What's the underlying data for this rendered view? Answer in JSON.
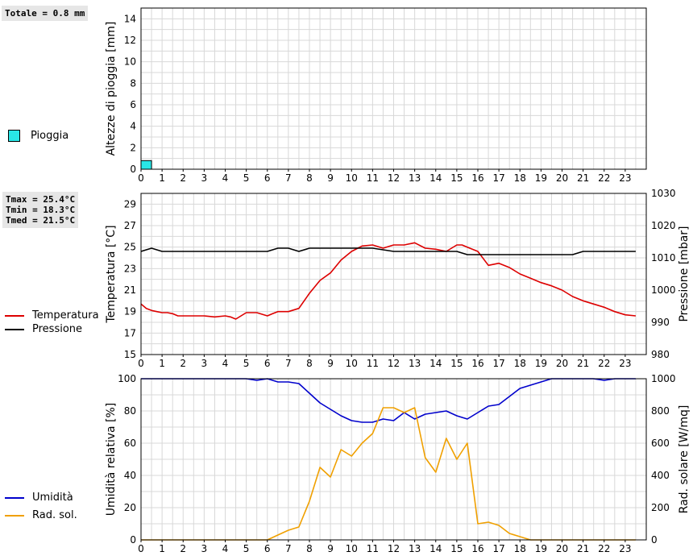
{
  "rain_panel": {
    "total_label": "Totale = 0.8 mm",
    "legend": [
      {
        "label": "Pioggia",
        "color": "#29e6e6"
      }
    ]
  },
  "temp_panel": {
    "stats": [
      "Tmax = 25.4°C",
      "Tmin = 18.3°C",
      "Tmed = 21.5°C"
    ],
    "legend": [
      {
        "label": "Temperatura",
        "color": "#dd0000"
      },
      {
        "label": "Pressione",
        "color": "#000000"
      }
    ]
  },
  "humidity_panel": {
    "legend": [
      {
        "label": "Umidità",
        "color": "#0000cc"
      },
      {
        "label": "Rad. sol.",
        "color": "#f0a000"
      }
    ]
  },
  "chart_data": [
    {
      "type": "bar",
      "ylabel": "Altezze di pioggia [mm]",
      "ylim": [
        0,
        15
      ],
      "yticks": [
        0,
        2,
        4,
        6,
        8,
        10,
        12,
        14
      ],
      "xlim": [
        0,
        24
      ],
      "xticks": [
        0,
        1,
        2,
        3,
        4,
        5,
        6,
        7,
        8,
        9,
        10,
        11,
        12,
        13,
        14,
        15,
        16,
        17,
        18,
        19,
        20,
        21,
        22,
        23
      ],
      "grid": true,
      "series": [
        {
          "name": "Pioggia",
          "color": "#29e6e6",
          "bars": [
            {
              "x0": 0,
              "x1": 0.5,
              "value": 0.8
            }
          ]
        }
      ]
    },
    {
      "type": "line",
      "ylabel": "Temperatura [°C]",
      "ylim": [
        15,
        30
      ],
      "yticks": [
        15,
        17,
        19,
        21,
        23,
        25,
        27,
        29
      ],
      "ylabel_right": "Pressione [mbar]",
      "ylim_right": [
        980,
        1030
      ],
      "yticks_right": [
        980,
        990,
        1000,
        1010,
        1020,
        1030
      ],
      "xlim": [
        0,
        24
      ],
      "xticks": [
        0,
        1,
        2,
        3,
        4,
        5,
        6,
        7,
        8,
        9,
        10,
        11,
        12,
        13,
        14,
        15,
        16,
        17,
        18,
        19,
        20,
        21,
        22,
        23
      ],
      "grid": true,
      "series": [
        {
          "name": "Temperatura",
          "color": "#dd0000",
          "axis": "left",
          "x": [
            0,
            0.25,
            0.5,
            0.75,
            1,
            1.25,
            1.5,
            1.75,
            2,
            2.5,
            3,
            3.5,
            4,
            4.25,
            4.5,
            4.75,
            5,
            5.5,
            6,
            6.25,
            6.5,
            7,
            7.5,
            8,
            8.5,
            9,
            9.5,
            10,
            10.5,
            11,
            11.5,
            12,
            12.5,
            13,
            13.5,
            14,
            14.5,
            15,
            15.25,
            15.5,
            16,
            16.5,
            17,
            17.5,
            18,
            18.5,
            19,
            19.5,
            20,
            20.5,
            21,
            21.5,
            22,
            22.5,
            23,
            23.5
          ],
          "y": [
            19.7,
            19.3,
            19.1,
            19.0,
            18.9,
            18.9,
            18.8,
            18.6,
            18.6,
            18.6,
            18.6,
            18.5,
            18.6,
            18.5,
            18.3,
            18.6,
            18.9,
            18.9,
            18.6,
            18.8,
            19.0,
            19.0,
            19.3,
            20.7,
            21.9,
            22.6,
            23.8,
            24.6,
            25.1,
            25.2,
            24.9,
            25.2,
            25.2,
            25.4,
            24.9,
            24.8,
            24.6,
            25.2,
            25.2,
            25.0,
            24.6,
            23.3,
            23.5,
            23.1,
            22.5,
            22.1,
            21.7,
            21.4,
            21.0,
            20.4,
            20.0,
            19.7,
            19.4,
            19.0,
            18.7,
            18.6
          ]
        },
        {
          "name": "Pressione",
          "color": "#000000",
          "axis": "right",
          "x": [
            0,
            0.5,
            1,
            2,
            3,
            4,
            5,
            6,
            6.5,
            7,
            7.5,
            8,
            9,
            10,
            11,
            12,
            13,
            14,
            15,
            15.5,
            16,
            17,
            18,
            19,
            20,
            20.5,
            21,
            22,
            23,
            23.5
          ],
          "y": [
            1012,
            1013,
            1012,
            1012,
            1012,
            1012,
            1012,
            1012,
            1013,
            1013,
            1012,
            1013,
            1013,
            1013,
            1013,
            1012,
            1012,
            1012,
            1012,
            1011,
            1011,
            1011,
            1011,
            1011,
            1011,
            1011,
            1012,
            1012,
            1012,
            1012
          ]
        }
      ]
    },
    {
      "type": "line",
      "ylabel": "Umidità relativa [%]",
      "ylim": [
        0,
        100
      ],
      "yticks": [
        0,
        20,
        40,
        60,
        80,
        100
      ],
      "ylabel_right": "Rad. solare [W/mq]",
      "ylim_right": [
        0,
        1000
      ],
      "yticks_right": [
        0,
        200,
        400,
        600,
        800,
        1000
      ],
      "xlim": [
        0,
        24
      ],
      "xticks": [
        0,
        1,
        2,
        3,
        4,
        5,
        6,
        7,
        8,
        9,
        10,
        11,
        12,
        13,
        14,
        15,
        16,
        17,
        18,
        19,
        20,
        21,
        22,
        23
      ],
      "grid": true,
      "series": [
        {
          "name": "Umidità",
          "color": "#0000cc",
          "axis": "left",
          "x": [
            0,
            1,
            2,
            3,
            4,
            5,
            5.5,
            6,
            6.5,
            7,
            7.5,
            8,
            8.5,
            9,
            9.5,
            10,
            10.5,
            11,
            11.5,
            12,
            12.5,
            13,
            13.5,
            14,
            14.5,
            15,
            15.5,
            16,
            16.5,
            17,
            17.5,
            18,
            18.5,
            19,
            19.5,
            20,
            21,
            21.5,
            22,
            22.5,
            23,
            23.5
          ],
          "y": [
            100,
            100,
            100,
            100,
            100,
            100,
            99,
            100,
            98,
            98,
            97,
            91,
            85,
            81,
            77,
            74,
            73,
            73,
            75,
            74,
            79,
            75,
            78,
            79,
            80,
            77,
            75,
            79,
            83,
            84,
            89,
            94,
            96,
            98,
            100,
            100,
            100,
            100,
            99,
            100,
            100,
            100
          ]
        },
        {
          "name": "Rad. sol.",
          "color": "#f0a000",
          "axis": "right",
          "x": [
            0,
            1,
            2,
            3,
            4,
            5,
            6,
            6.5,
            7,
            7.5,
            8,
            8.5,
            9,
            9.5,
            10,
            10.5,
            11,
            11.5,
            12,
            12.5,
            13,
            13.5,
            14,
            14.5,
            15,
            15.5,
            16,
            16.5,
            17,
            17.5,
            18,
            18.5,
            19,
            20,
            21,
            22,
            23,
            23.5
          ],
          "y": [
            0,
            0,
            0,
            0,
            0,
            0,
            0,
            30,
            60,
            80,
            240,
            450,
            390,
            560,
            520,
            600,
            660,
            820,
            820,
            790,
            820,
            510,
            420,
            630,
            500,
            600,
            100,
            110,
            90,
            40,
            20,
            0,
            0,
            0,
            0,
            0,
            0,
            0
          ]
        }
      ]
    }
  ]
}
